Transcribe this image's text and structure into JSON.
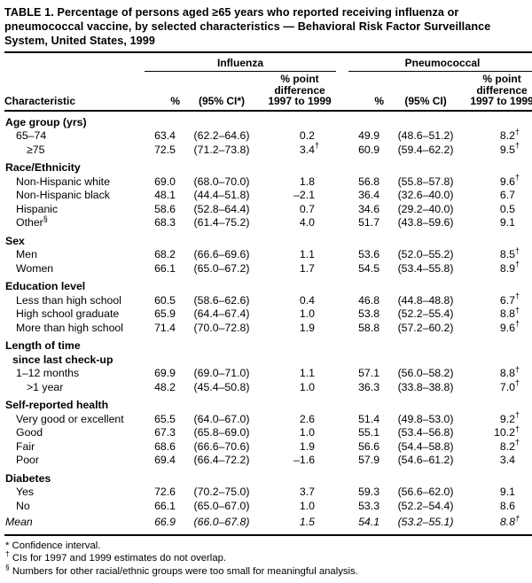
{
  "title": "TABLE 1. Percentage of persons aged ≥65 years who reported receiving influenza or pneumococcal vaccine, by selected characteristics — Behavioral Risk Factor Surveillance System, United States, 1999",
  "table": {
    "header": {
      "characteristic": "Characteristic",
      "groups": [
        {
          "label": "Influenza",
          "pct": "%",
          "ci": "(95% CI*)",
          "diff_lines": [
            "% point",
            "difference",
            "1997 to 1999"
          ]
        },
        {
          "label": "Pneumococcal",
          "pct": "%",
          "ci": "(95% CI)",
          "diff_lines": [
            "% point",
            "difference",
            "1997 to 1999"
          ]
        }
      ]
    },
    "sections": [
      {
        "header_lines": [
          "Age group (yrs)"
        ],
        "rows": [
          {
            "label": "65–74",
            "indent": 1,
            "flu": [
              "63.4",
              "(62.2–64.6)",
              "0.2"
            ],
            "pneu": [
              "49.9",
              "(48.6–51.2)",
              "8.2†"
            ]
          },
          {
            "label": "≥75",
            "indent": 2,
            "flu": [
              "72.5",
              "(71.2–73.8)",
              "3.4†"
            ],
            "pneu": [
              "60.9",
              "(59.4–62.2)",
              "9.5†"
            ]
          }
        ]
      },
      {
        "header_lines": [
          "Race/Ethnicity"
        ],
        "rows": [
          {
            "label": "Non-Hispanic white",
            "indent": 1,
            "flu": [
              "69.0",
              "(68.0–70.0)",
              "1.8"
            ],
            "pneu": [
              "56.8",
              "(55.8–57.8)",
              "9.6†"
            ]
          },
          {
            "label": "Non-Hispanic black",
            "indent": 1,
            "flu": [
              "48.1",
              "(44.4–51.8)",
              "–2.1"
            ],
            "pneu": [
              "36.4",
              "(32.6–40.0)",
              "6.7"
            ]
          },
          {
            "label": "Hispanic",
            "indent": 1,
            "flu": [
              "58.6",
              "(52.8–64.4)",
              "0.7"
            ],
            "pneu": [
              "34.6",
              "(29.2–40.0)",
              "0.5"
            ]
          },
          {
            "label": "Other§",
            "indent": 1,
            "flu": [
              "68.3",
              "(61.4–75.2)",
              "4.0"
            ],
            "pneu": [
              "51.7",
              "(43.8–59.6)",
              "9.1"
            ]
          }
        ]
      },
      {
        "header_lines": [
          "Sex"
        ],
        "rows": [
          {
            "label": "Men",
            "indent": 1,
            "flu": [
              "68.2",
              "(66.6–69.6)",
              "1.1"
            ],
            "pneu": [
              "53.6",
              "(52.0–55.2)",
              "8.5†"
            ]
          },
          {
            "label": "Women",
            "indent": 1,
            "flu": [
              "66.1",
              "(65.0–67.2)",
              "1.7"
            ],
            "pneu": [
              "54.5",
              "(53.4–55.8)",
              "8.9†"
            ]
          }
        ]
      },
      {
        "header_lines": [
          "Education level"
        ],
        "rows": [
          {
            "label": "Less than high school",
            "indent": 1,
            "flu": [
              "60.5",
              "(58.6–62.6)",
              "0.4"
            ],
            "pneu": [
              "46.8",
              "(44.8–48.8)",
              "6.7†"
            ]
          },
          {
            "label": "High school graduate",
            "indent": 1,
            "flu": [
              "65.9",
              "(64.4–67.4)",
              "1.0"
            ],
            "pneu": [
              "53.8",
              "(52.2–55.4)",
              "8.8†"
            ]
          },
          {
            "label": "More than high school",
            "indent": 1,
            "flu": [
              "71.4",
              "(70.0–72.8)",
              "1.9"
            ],
            "pneu": [
              "58.8",
              "(57.2–60.2)",
              "9.6†"
            ]
          }
        ]
      },
      {
        "header_lines": [
          "Length of time",
          "since last check-up"
        ],
        "rows": [
          {
            "label": "1–12 months",
            "indent": 1,
            "flu": [
              "69.9",
              "(69.0–71.0)",
              "1.1"
            ],
            "pneu": [
              "57.1",
              "(56.0–58.2)",
              "8.8†"
            ]
          },
          {
            "label": ">1 year",
            "indent": 2,
            "flu": [
              "48.2",
              "(45.4–50.8)",
              "1.0"
            ],
            "pneu": [
              "36.3",
              "(33.8–38.8)",
              "7.0†"
            ]
          }
        ]
      },
      {
        "header_lines": [
          "Self-reported health"
        ],
        "rows": [
          {
            "label": "Very good or excellent",
            "indent": 1,
            "flu": [
              "65.5",
              "(64.0–67.0)",
              "2.6"
            ],
            "pneu": [
              "51.4",
              "(49.8–53.0)",
              "9.2†"
            ]
          },
          {
            "label": "Good",
            "indent": 1,
            "flu": [
              "67.3",
              "(65.8–69.0)",
              "1.0"
            ],
            "pneu": [
              "55.1",
              "(53.4–56.8)",
              "10.2†"
            ]
          },
          {
            "label": "Fair",
            "indent": 1,
            "flu": [
              "68.6",
              "(66.6–70.6)",
              "1.9"
            ],
            "pneu": [
              "56.6",
              "(54.4–58.8)",
              "8.2†"
            ]
          },
          {
            "label": "Poor",
            "indent": 1,
            "flu": [
              "69.4",
              "(66.4–72.2)",
              "–1.6"
            ],
            "pneu": [
              "57.9",
              "(54.6–61.2)",
              "3.4"
            ]
          }
        ]
      },
      {
        "header_lines": [
          "Diabetes"
        ],
        "rows": [
          {
            "label": "Yes",
            "indent": 1,
            "flu": [
              "72.6",
              "(70.2–75.0)",
              "3.7"
            ],
            "pneu": [
              "59.3",
              "(56.6–62.0)",
              "9.1"
            ]
          },
          {
            "label": "No",
            "indent": 1,
            "flu": [
              "66.1",
              "(65.0–67.0)",
              "1.0"
            ],
            "pneu": [
              "53.3",
              "(52.2–54.4)",
              "8.6"
            ]
          }
        ]
      },
      {
        "header_lines": [],
        "rows": [
          {
            "label": "Mean",
            "indent": 0,
            "italic": true,
            "flu": [
              "66.9",
              "(66.0–67.8)",
              "1.5"
            ],
            "pneu": [
              "54.1",
              "(53.2–55.1)",
              "8.8†"
            ]
          }
        ]
      }
    ]
  },
  "footnotes": [
    {
      "marker": "*",
      "sup": false,
      "text": "Confidence interval."
    },
    {
      "marker": "†",
      "sup": true,
      "text": "CIs for 1997 and 1999 estimates do not overlap."
    },
    {
      "marker": "§",
      "sup": true,
      "text": "Numbers for other racial/ethnic groups were too small for meaningful analysis."
    }
  ]
}
